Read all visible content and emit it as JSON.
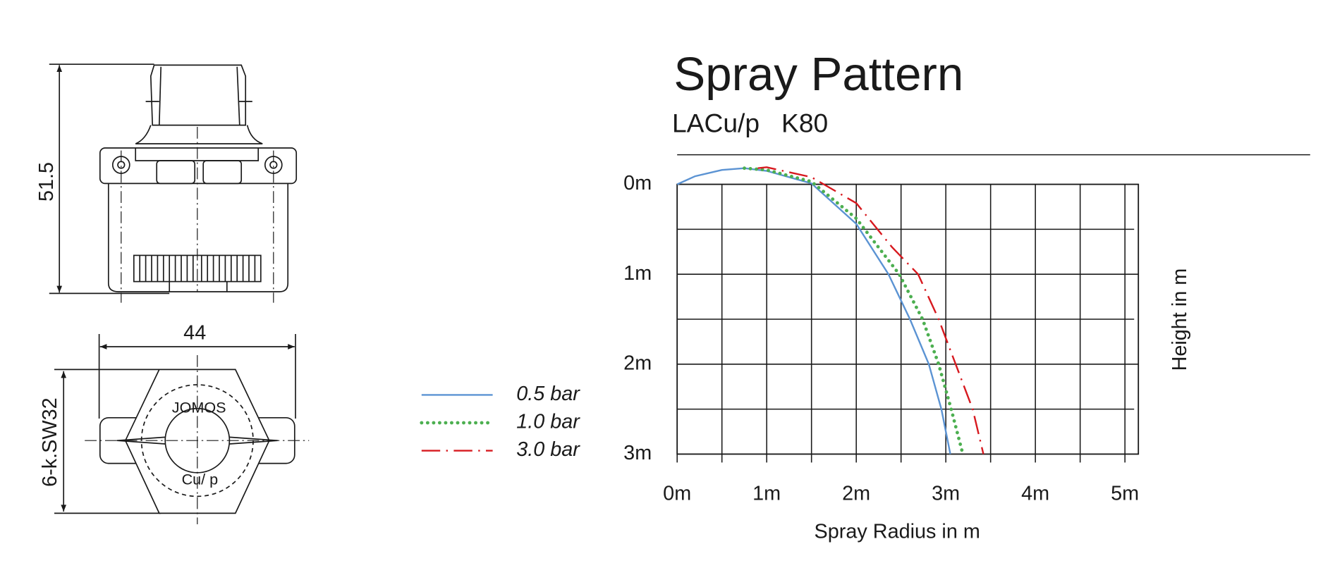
{
  "drawing": {
    "dimensions": [
      "51.5",
      "44",
      "6-k.SW32"
    ],
    "markings": [
      "JOMOS",
      "Cu/ p"
    ]
  },
  "chart_data": {
    "type": "line",
    "title": "Spray Pattern",
    "subtitle": "LACu/p   K80",
    "xlabel": "Spray Radius in m",
    "ylabel": "Height in m",
    "xlim": [
      0,
      5.15
    ],
    "ylim": [
      0,
      3
    ],
    "y_inverted": true,
    "grid": true,
    "xticks": [
      {
        "value": 0,
        "label": "0m"
      },
      {
        "value": 1,
        "label": "1m"
      },
      {
        "value": 2,
        "label": "2m"
      },
      {
        "value": 3,
        "label": "3m"
      },
      {
        "value": 4,
        "label": "4m"
      },
      {
        "value": 5,
        "label": "5m"
      }
    ],
    "xminorticks": [
      0.5,
      1.5,
      2.5,
      3.5,
      4.5
    ],
    "yticks": [
      {
        "value": 0,
        "label": "0m"
      },
      {
        "value": 1,
        "label": "1m"
      },
      {
        "value": 2,
        "label": "2m"
      },
      {
        "value": 3,
        "label": "3m"
      }
    ],
    "yminorticks": [
      0.5,
      1.5,
      2.5
    ],
    "series": [
      {
        "name": "0.5 bar",
        "color": "#5b93d3",
        "style": "solid",
        "x": [
          0,
          0.2,
          0.5,
          0.75,
          1,
          1.5,
          2,
          2.36,
          2.6,
          2.81,
          2.95,
          3.05
        ],
        "values": [
          0,
          -0.09,
          -0.16,
          -0.18,
          -0.15,
          -0.01,
          0.44,
          1.0,
          1.5,
          2.0,
          2.5,
          3.0
        ]
      },
      {
        "name": "1.0 bar",
        "color": "#4caf50",
        "style": "dotted",
        "x": [
          0.75,
          1,
          1.5,
          2,
          2.48,
          2.74,
          2.92,
          3.06,
          3.19
        ],
        "values": [
          -0.18,
          -0.16,
          -0.03,
          0.38,
          1.0,
          1.5,
          2.0,
          2.5,
          3.0
        ]
      },
      {
        "name": "3.0 bar",
        "color": "#d7191f",
        "style": "dashdot",
        "x": [
          0.9,
          1,
          1.5,
          2,
          2.4,
          2.69,
          2.92,
          3.11,
          3.3,
          3.42
        ],
        "values": [
          -0.18,
          -0.19,
          -0.08,
          0.21,
          0.7,
          1.0,
          1.5,
          2.0,
          2.5,
          3.0
        ]
      }
    ]
  }
}
